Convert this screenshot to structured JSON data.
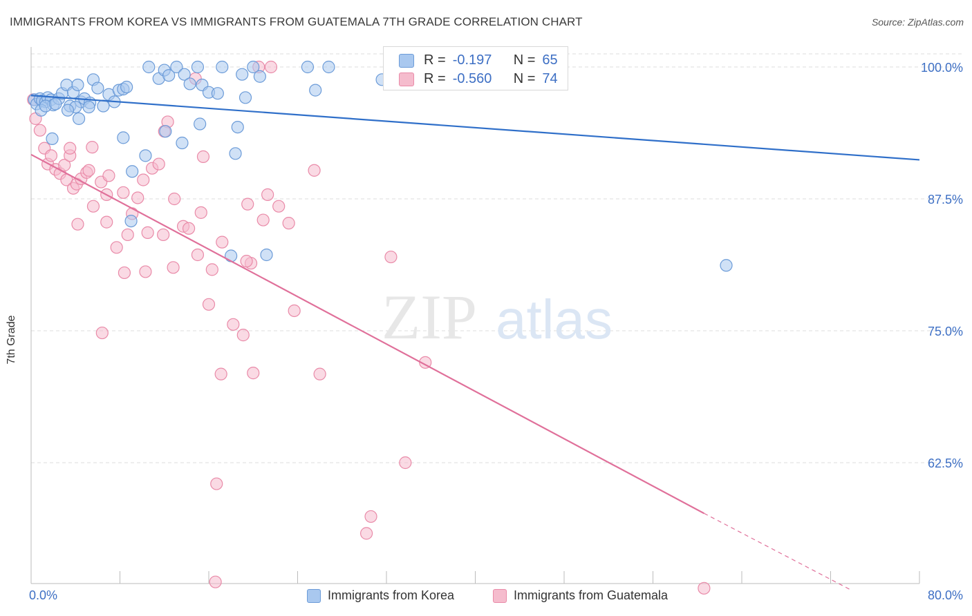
{
  "title": "IMMIGRANTS FROM KOREA VS IMMIGRANTS FROM GUATEMALA 7TH GRADE CORRELATION CHART",
  "source": "Source: ZipAtlas.com",
  "watermark": {
    "zip": "ZIP",
    "atlas": "atlas"
  },
  "colors": {
    "korea_fill": "#a9c8ef",
    "korea_stroke": "#6b9bd8",
    "korea_line": "#2f6fc9",
    "guatemala_fill": "#f5bccd",
    "guatemala_stroke": "#e98aa8",
    "guatemala_line": "#e0709a",
    "axis_label": "#3d6fc4",
    "grid": "#dddddd"
  },
  "legend": {
    "rows": [
      {
        "r_label": "R =",
        "r_value": "-0.197",
        "n_label": "N =",
        "n_value": "65"
      },
      {
        "r_label": "R =",
        "r_value": "-0.560",
        "n_label": "N =",
        "n_value": "74"
      }
    ]
  },
  "bottom_legend": [
    "Immigrants from Korea",
    "Immigrants from Guatemala"
  ],
  "chart_data": {
    "type": "scatter",
    "title": "IMMIGRANTS FROM KOREA VS IMMIGRANTS FROM GUATEMALA 7TH GRADE CORRELATION CHART",
    "xlabel": "",
    "ylabel": "7th Grade",
    "xlim": [
      0,
      80
    ],
    "ylim": [
      50.5,
      101.5
    ],
    "x_tick_labels": [
      "0.0%",
      "80.0%"
    ],
    "y_ticks": [
      62.5,
      75.0,
      87.5,
      100.0
    ],
    "y_tick_labels": [
      "62.5%",
      "75.0%",
      "87.5%",
      "100.0%"
    ],
    "grid": true,
    "legend_position": "top-center",
    "series": [
      {
        "name": "Immigrants from Korea",
        "trend": {
          "x": [
            0,
            80
          ],
          "y": [
            97.3,
            91.2
          ]
        },
        "points": [
          [
            0.3,
            96.9
          ],
          [
            0.5,
            96.5
          ],
          [
            0.8,
            97.0
          ],
          [
            1.0,
            96.8
          ],
          [
            1.3,
            96.7
          ],
          [
            1.5,
            97.1
          ],
          [
            1.8,
            96.9
          ],
          [
            2.0,
            96.4
          ],
          [
            2.5,
            97.0
          ],
          [
            2.8,
            97.5
          ],
          [
            3.2,
            98.3
          ],
          [
            3.5,
            96.3
          ],
          [
            3.8,
            97.6
          ],
          [
            4.2,
            98.3
          ],
          [
            4.5,
            96.7
          ],
          [
            4.8,
            97.0
          ],
          [
            5.3,
            96.6
          ],
          [
            5.6,
            98.8
          ],
          [
            6.0,
            98.0
          ],
          [
            6.5,
            96.3
          ],
          [
            7.0,
            97.4
          ],
          [
            7.5,
            96.7
          ],
          [
            7.9,
            97.8
          ],
          [
            8.3,
            97.9
          ],
          [
            8.6,
            98.1
          ],
          [
            10.6,
            100.0
          ],
          [
            11.5,
            98.9
          ],
          [
            12.0,
            99.7
          ],
          [
            12.4,
            99.2
          ],
          [
            13.1,
            100.0
          ],
          [
            13.8,
            99.3
          ],
          [
            14.3,
            98.4
          ],
          [
            15.0,
            100.0
          ],
          [
            15.4,
            98.3
          ],
          [
            16.0,
            97.6
          ],
          [
            16.8,
            97.5
          ],
          [
            17.2,
            100.0
          ],
          [
            19.3,
            97.1
          ],
          [
            19.0,
            99.3
          ],
          [
            20.0,
            100.0
          ],
          [
            20.6,
            99.1
          ],
          [
            24.9,
            100.0
          ],
          [
            25.6,
            97.8
          ],
          [
            26.8,
            100.0
          ],
          [
            31.6,
            98.8
          ],
          [
            0.9,
            95.9
          ],
          [
            1.3,
            96.3
          ],
          [
            4.0,
            96.2
          ],
          [
            5.2,
            96.2
          ],
          [
            2.2,
            96.5
          ],
          [
            3.3,
            95.9
          ],
          [
            4.3,
            95.1
          ],
          [
            15.2,
            94.6
          ],
          [
            18.6,
            94.3
          ],
          [
            12.1,
            93.9
          ],
          [
            8.3,
            93.3
          ],
          [
            13.6,
            92.8
          ],
          [
            1.9,
            93.2
          ],
          [
            10.3,
            91.6
          ],
          [
            18.4,
            91.8
          ],
          [
            9.1,
            90.1
          ],
          [
            9.0,
            85.4
          ],
          [
            18.0,
            82.1
          ],
          [
            21.2,
            82.2
          ],
          [
            62.6,
            81.2
          ]
        ]
      },
      {
        "name": "Immigrants from Guatemala",
        "trend": {
          "x": [
            0,
            60.6
          ],
          "y": [
            91.7,
            57.7
          ]
        },
        "trend_dashed": {
          "x": [
            60.6,
            73.9
          ],
          "y": [
            57.7,
            50.4
          ]
        },
        "points": [
          [
            0.2,
            96.9
          ],
          [
            0.4,
            95.1
          ],
          [
            0.8,
            94.0
          ],
          [
            1.2,
            92.3
          ],
          [
            1.5,
            90.8
          ],
          [
            1.8,
            91.6
          ],
          [
            2.2,
            90.3
          ],
          [
            2.6,
            89.9
          ],
          [
            3.0,
            90.7
          ],
          [
            3.2,
            89.3
          ],
          [
            3.5,
            91.6
          ],
          [
            3.8,
            88.5
          ],
          [
            4.1,
            88.9
          ],
          [
            4.5,
            89.4
          ],
          [
            5.0,
            90.0
          ],
          [
            5.2,
            90.2
          ],
          [
            5.6,
            86.8
          ],
          [
            6.3,
            89.1
          ],
          [
            6.8,
            87.9
          ],
          [
            7.0,
            89.7
          ],
          [
            7.7,
            82.9
          ],
          [
            8.3,
            88.1
          ],
          [
            8.7,
            84.1
          ],
          [
            9.1,
            86.1
          ],
          [
            9.6,
            87.6
          ],
          [
            10.1,
            89.3
          ],
          [
            10.9,
            90.4
          ],
          [
            11.5,
            90.8
          ],
          [
            12.3,
            94.8
          ],
          [
            12.0,
            93.9
          ],
          [
            12.8,
            81.0
          ],
          [
            13.7,
            84.9
          ],
          [
            14.2,
            84.7
          ],
          [
            14.8,
            98.9
          ],
          [
            15.0,
            82.2
          ],
          [
            15.3,
            86.2
          ],
          [
            15.5,
            91.5
          ],
          [
            16.0,
            77.5
          ],
          [
            16.3,
            80.8
          ],
          [
            17.2,
            83.4
          ],
          [
            18.2,
            75.6
          ],
          [
            19.1,
            74.6
          ],
          [
            19.5,
            87.0
          ],
          [
            19.8,
            81.4
          ],
          [
            20.0,
            71.0
          ],
          [
            20.5,
            100.0
          ],
          [
            20.9,
            85.5
          ],
          [
            21.3,
            87.9
          ],
          [
            21.6,
            100.0
          ],
          [
            22.3,
            86.8
          ],
          [
            23.2,
            85.2
          ],
          [
            23.7,
            76.9
          ],
          [
            25.5,
            90.2
          ],
          [
            32.4,
            82.0
          ],
          [
            33.7,
            62.5
          ],
          [
            35.5,
            72.0
          ],
          [
            4.2,
            85.1
          ],
          [
            6.8,
            85.3
          ],
          [
            8.4,
            80.5
          ],
          [
            10.3,
            80.6
          ],
          [
            6.4,
            74.8
          ],
          [
            12.9,
            87.5
          ],
          [
            17.1,
            70.9
          ],
          [
            19.4,
            81.6
          ],
          [
            26.0,
            70.9
          ],
          [
            16.7,
            60.5
          ],
          [
            30.6,
            57.4
          ],
          [
            30.2,
            55.8
          ],
          [
            16.6,
            51.2
          ],
          [
            60.6,
            50.6
          ],
          [
            3.5,
            92.3
          ],
          [
            5.5,
            92.4
          ],
          [
            10.5,
            84.3
          ],
          [
            11.9,
            84.1
          ]
        ]
      }
    ]
  }
}
